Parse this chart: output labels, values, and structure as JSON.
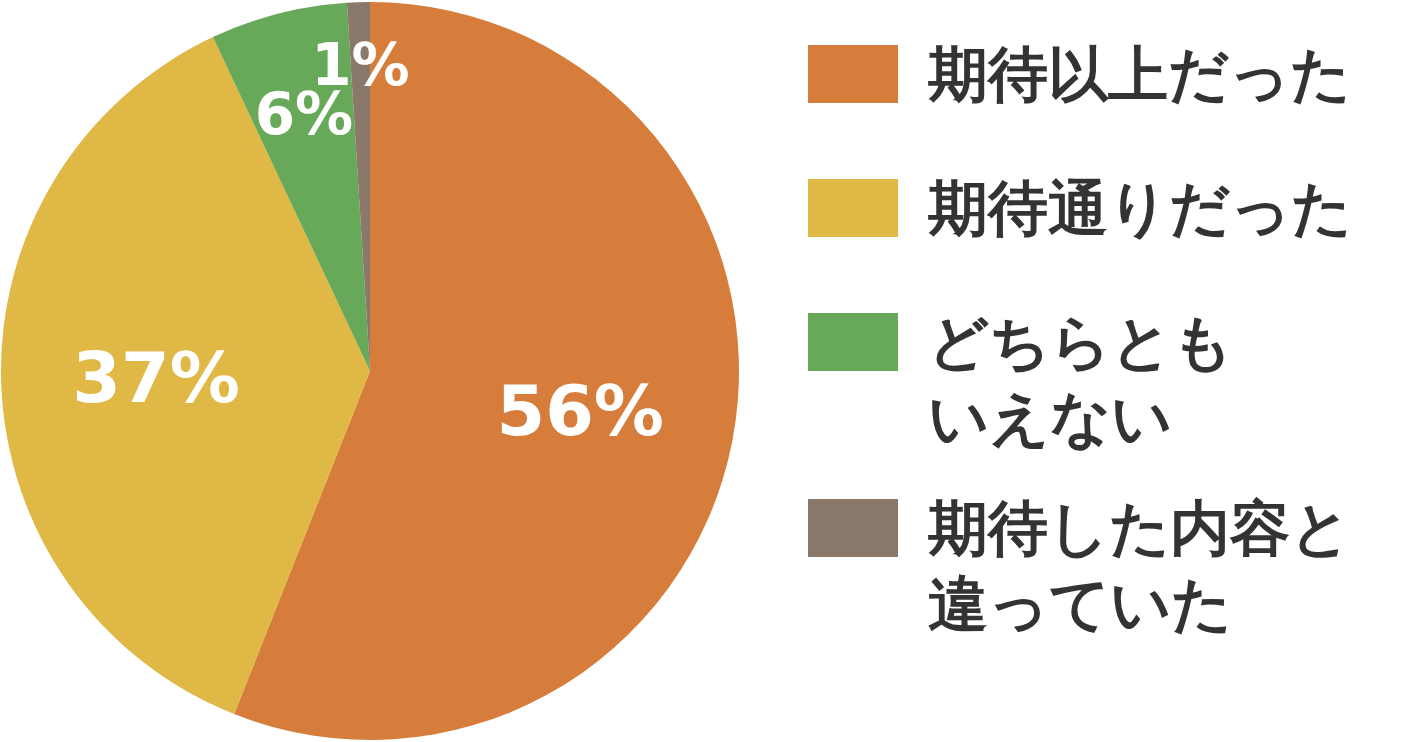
{
  "chart_data": {
    "type": "pie",
    "categories": [
      "期待以上だった",
      "期待通りだった",
      "どちらともいえない",
      "期待した内容と違っていた"
    ],
    "values": [
      56,
      37,
      6,
      1
    ],
    "colors": [
      "#d67d3c",
      "#dfb845",
      "#67a958",
      "#8a796b"
    ],
    "value_labels": [
      "56%",
      "37%",
      "6%",
      "1%"
    ],
    "legend": "right"
  }
}
